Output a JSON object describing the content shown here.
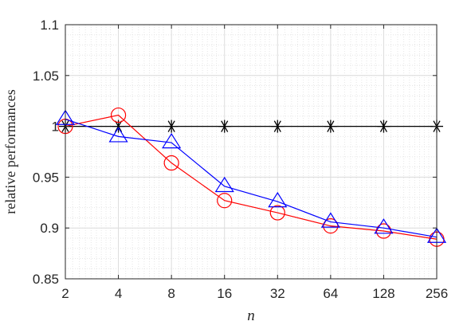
{
  "chart_data": {
    "type": "line",
    "title": "",
    "xlabel": "n",
    "ylabel": "relative performances",
    "x": [
      2,
      4,
      8,
      16,
      32,
      64,
      128,
      256
    ],
    "x_scale": "log2",
    "xlim": [
      2,
      256
    ],
    "ylim": [
      0.85,
      1.1
    ],
    "y_ticks": [
      0.85,
      0.9,
      0.95,
      1,
      1.05,
      1.1
    ],
    "y_tick_labels": [
      "0.85",
      "0.9",
      "0.95",
      "1",
      "1.05",
      "1.1"
    ],
    "x_tick_labels": [
      "2",
      "4",
      "8",
      "16",
      "32",
      "64",
      "128",
      "256"
    ],
    "grid": true,
    "minor_grid": true,
    "legend": false,
    "series": [
      {
        "marker": "star",
        "color": "#000000",
        "values": [
          1.0,
          1.0,
          1.0,
          1.0,
          1.0,
          1.0,
          1.0,
          1.0
        ]
      },
      {
        "marker": "circle",
        "color": "#ff0000",
        "values": [
          1.0,
          1.011,
          0.964,
          0.927,
          0.915,
          0.902,
          0.897,
          0.889
        ]
      },
      {
        "marker": "triangle",
        "color": "#0000ff",
        "values": [
          1.007,
          0.99,
          0.984,
          0.941,
          0.926,
          0.906,
          0.9,
          0.891
        ]
      }
    ]
  }
}
